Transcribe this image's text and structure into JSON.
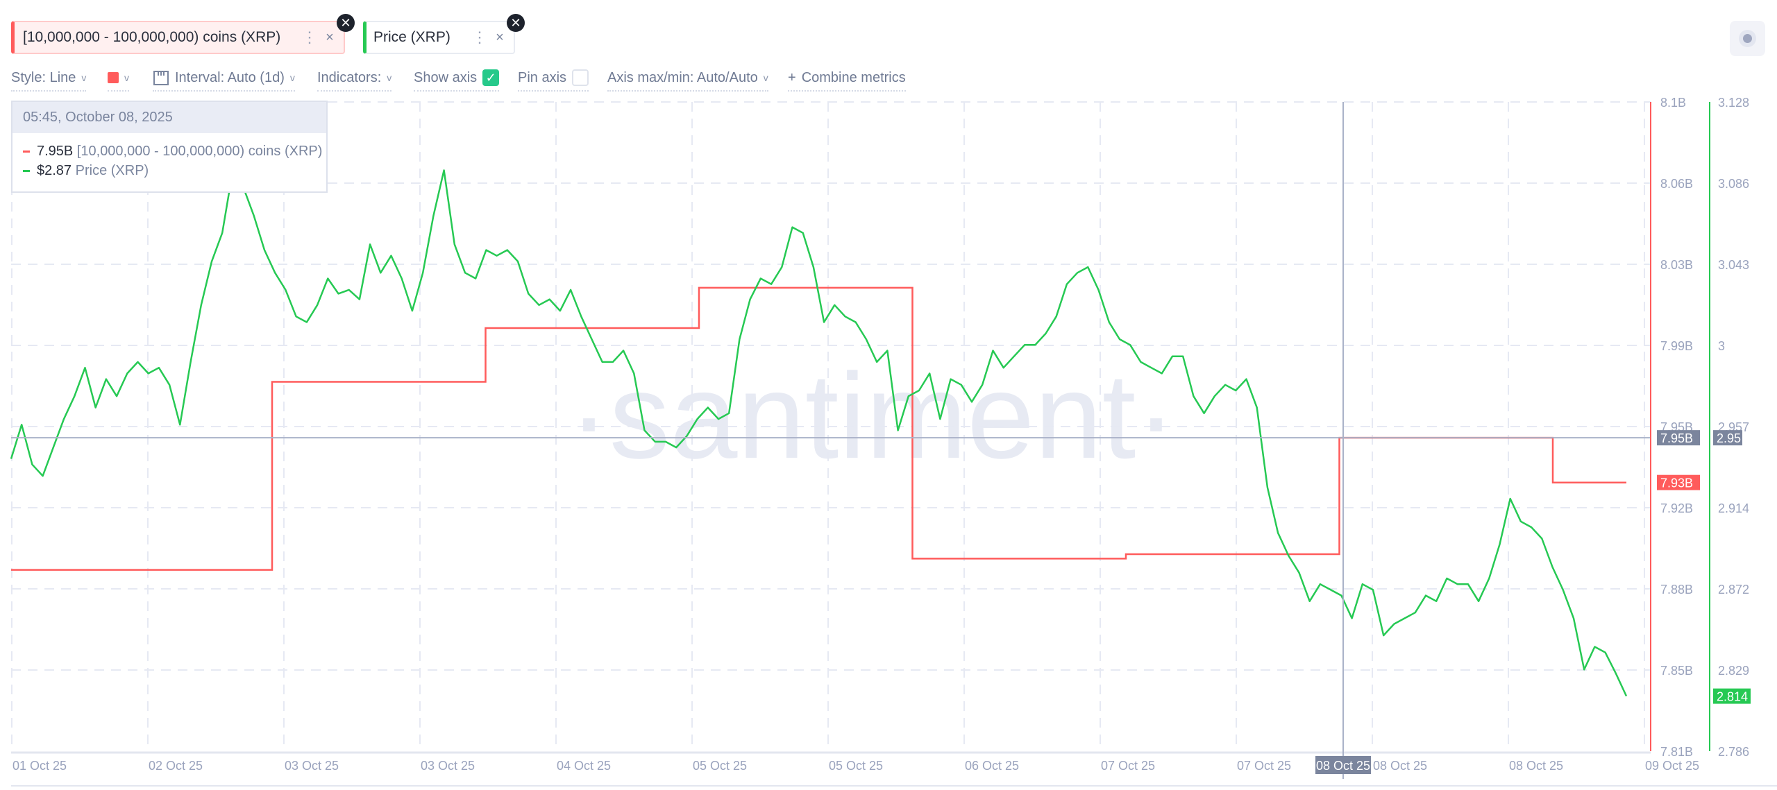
{
  "metrics": [
    {
      "label": "[10,000,000 - 100,000,000) coins (XRP)",
      "color": "#ff5b5b"
    },
    {
      "label": "Price (XRP)",
      "color": "#26c953"
    }
  ],
  "icons": {
    "menu": "vertical-dots-icon",
    "close": "close-icon",
    "badge": "close-circle-icon"
  },
  "chip_close": "×",
  "chip_menu": "⋮",
  "badge_close": "✕",
  "toolbar": {
    "style": "Style: Line",
    "interval": "Interval: Auto (1d)",
    "indicators": "Indicators:",
    "show_axis": "Show axis",
    "show_axis_checked": true,
    "pin_axis": "Pin axis",
    "pin_axis_checked": false,
    "axis_maxmin": "Axis max/min: Auto/Auto",
    "combine": "Combine metrics",
    "plus": "+",
    "chevron": "v",
    "check": "✓"
  },
  "tooltip": {
    "date": "05:45, October 08, 2025",
    "rows": [
      {
        "value": "7.95B",
        "label": "[10,000,000 - 100,000,000) coins (XRP)",
        "color": "#ff5b5b"
      },
      {
        "value": "$2.87",
        "label": "Price (XRP)",
        "color": "#26c953"
      }
    ]
  },
  "watermark": "·santiment·",
  "chart_data": {
    "type": "line",
    "x_ticks": [
      "01 Oct 25",
      "02 Oct 25",
      "03 Oct 25",
      "03 Oct 25",
      "04 Oct 25",
      "05 Oct 25",
      "05 Oct 25",
      "06 Oct 25",
      "07 Oct 25",
      "07 Oct 25",
      "08 Oct 25",
      "08 Oct 25",
      "09 Oct 25"
    ],
    "hover_x_label": "08 Oct 25",
    "grid": true,
    "series": [
      {
        "name": "[10,000,000 - 100,000,000) coins (XRP)",
        "color": "#ff5b5b",
        "style": "step",
        "axis": "left-axis",
        "ylim": [
          7.81,
          8.1
        ],
        "y_ticks": [
          "8.1B",
          "8.06B",
          "8.03B",
          "7.99B",
          "7.95B",
          "7.92B",
          "7.88B",
          "7.85B",
          "7.81B"
        ],
        "unit": "B",
        "points": [
          {
            "date": "02 Oct 25",
            "value": 7.891
          },
          {
            "date": "03 Oct 25",
            "value": 7.975
          },
          {
            "date": "04 Oct 25",
            "value": 7.999
          },
          {
            "date": "05 Oct 25",
            "value": 8.017
          },
          {
            "date": "06 Oct 25",
            "value": 7.896
          },
          {
            "date": "07 Oct 25",
            "value": 7.898
          },
          {
            "date": "08 Oct 25",
            "value": 7.95
          },
          {
            "date": "09 Oct 25",
            "value": 7.93
          }
        ],
        "last_label": "7.93B",
        "hover_label": "7.95B"
      },
      {
        "name": "Price (XRP)",
        "color": "#26c953",
        "style": "line",
        "axis": "right-axis",
        "ylim": [
          2.786,
          3.128
        ],
        "y_ticks": [
          "3.128",
          "3.086",
          "3.043",
          "3",
          "2.957",
          "2.914",
          "2.872",
          "2.829",
          "2.786"
        ],
        "values": [
          2.94,
          2.958,
          2.937,
          2.931,
          2.946,
          2.961,
          2.973,
          2.988,
          2.967,
          2.982,
          2.973,
          2.985,
          2.991,
          2.985,
          2.988,
          2.979,
          2.958,
          2.991,
          3.021,
          3.044,
          3.059,
          3.092,
          3.083,
          3.068,
          3.05,
          3.038,
          3.029,
          3.015,
          3.012,
          3.021,
          3.035,
          3.027,
          3.029,
          3.024,
          3.053,
          3.038,
          3.047,
          3.035,
          3.018,
          3.038,
          3.068,
          3.092,
          3.053,
          3.038,
          3.035,
          3.05,
          3.047,
          3.05,
          3.044,
          3.027,
          3.021,
          3.024,
          3.018,
          3.029,
          3.015,
          3.003,
          2.991,
          2.991,
          2.997,
          2.985,
          2.955,
          2.949,
          2.949,
          2.946,
          2.952,
          2.961,
          2.967,
          2.961,
          2.964,
          3.003,
          3.024,
          3.035,
          3.032,
          3.041,
          3.062,
          3.059,
          3.041,
          3.012,
          3.021,
          3.015,
          3.012,
          3.003,
          2.991,
          2.997,
          2.955,
          2.973,
          2.976,
          2.985,
          2.961,
          2.982,
          2.979,
          2.97,
          2.979,
          2.997,
          2.988,
          2.994,
          3.0,
          3.0,
          3.006,
          3.015,
          3.032,
          3.038,
          3.041,
          3.029,
          3.012,
          3.003,
          3.0,
          2.991,
          2.988,
          2.985,
          2.994,
          2.994,
          2.973,
          2.964,
          2.973,
          2.979,
          2.976,
          2.982,
          2.967,
          2.925,
          2.901,
          2.889,
          2.88,
          2.865,
          2.874,
          2.871,
          2.868,
          2.856,
          2.874,
          2.871,
          2.847,
          2.853,
          2.856,
          2.859,
          2.868,
          2.865,
          2.877,
          2.874,
          2.874,
          2.865,
          2.877,
          2.895,
          2.919,
          2.907,
          2.904,
          2.898,
          2.883,
          2.871,
          2.856,
          2.829,
          2.841,
          2.838,
          2.827,
          2.815
        ],
        "last_label": "2.814",
        "hover_label": "2.95"
      }
    ]
  },
  "colors": {
    "axis_text": "#9aa3bd",
    "grid": "#e6e9f3",
    "crosshair": "#aab2c8",
    "hover_box": "#7b859d"
  }
}
